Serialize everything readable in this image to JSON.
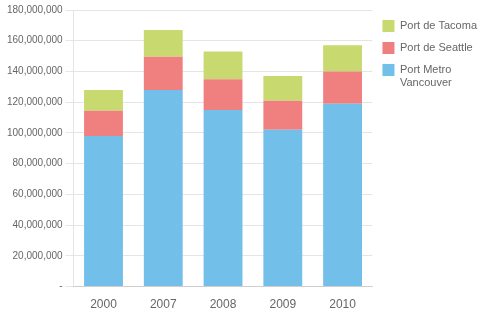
{
  "chart_data": {
    "type": "bar",
    "stacked": true,
    "categories": [
      "2000",
      "2007",
      "2008",
      "2009",
      "2010"
    ],
    "series": [
      {
        "name": "Port Metro\nVancouver",
        "color": "#72BFEA",
        "values": [
          98000000,
          128000000,
          115000000,
          102000000,
          119000000
        ]
      },
      {
        "name": "Port de Seattle",
        "color": "#F08080",
        "values": [
          16500000,
          21500000,
          20000000,
          19000000,
          21000000
        ]
      },
      {
        "name": "Port de Tacoma",
        "color": "#C8D96F",
        "values": [
          13500000,
          17500000,
          18000000,
          16000000,
          17000000
        ]
      }
    ],
    "ylim": [
      0,
      180000000
    ],
    "yticks": [
      {
        "value": 0,
        "label": "-"
      },
      {
        "value": 20000000,
        "label": "20,000,000"
      },
      {
        "value": 40000000,
        "label": "40,000,000"
      },
      {
        "value": 60000000,
        "label": "60,000,000"
      },
      {
        "value": 80000000,
        "label": "80,000,000"
      },
      {
        "value": 100000000,
        "label": "100,000,000"
      },
      {
        "value": 120000000,
        "label": "120,000,000"
      },
      {
        "value": 140000000,
        "label": "140,000,000"
      },
      {
        "value": 160000000,
        "label": "160,000,000"
      },
      {
        "value": 180000000,
        "label": "180,000,000"
      }
    ],
    "grid": true,
    "legend": "right"
  }
}
